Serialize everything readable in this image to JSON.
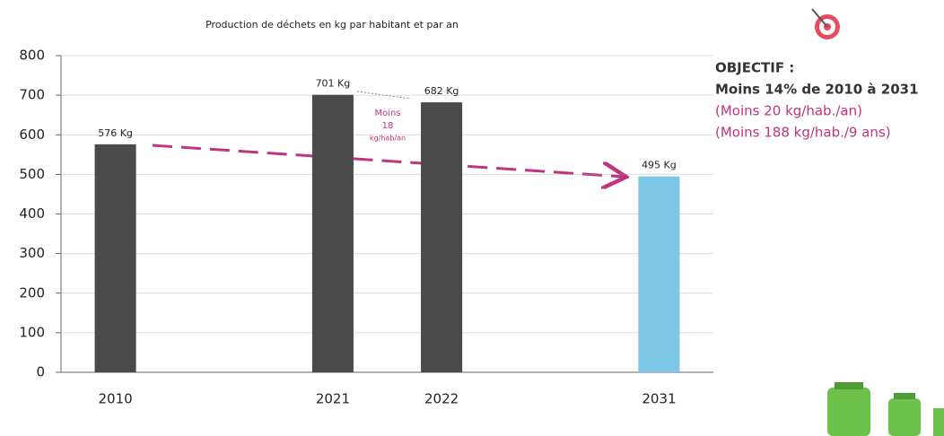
{
  "chart_data": {
    "type": "bar",
    "title": "Production de déchets en kg par habitant et par an",
    "categories": [
      "2010",
      null,
      "2021",
      "2022",
      null,
      "2031"
    ],
    "values": [
      576,
      null,
      701,
      682,
      null,
      495
    ],
    "value_labels": [
      "576 Kg",
      null,
      "701 Kg",
      "682 Kg",
      null,
      "495 Kg"
    ],
    "colors": [
      "#4a4a4a",
      null,
      "#4a4a4a",
      "#4a4a4a",
      null,
      "#7cc6e6"
    ],
    "ylim": [
      0,
      800
    ],
    "yticks": [
      0,
      100,
      200,
      300,
      400,
      500,
      600,
      700,
      800
    ],
    "grid": true,
    "annotations": {
      "difference": [
        "Moins",
        "18",
        "kg/hab/an"
      ],
      "objective": [
        "OBJECTIF :",
        "Moins 14% de 2010 à 2031",
        "(Moins 20 kg/hab./an)",
        "(Moins 188 kg/hab./9 ans)"
      ]
    }
  }
}
